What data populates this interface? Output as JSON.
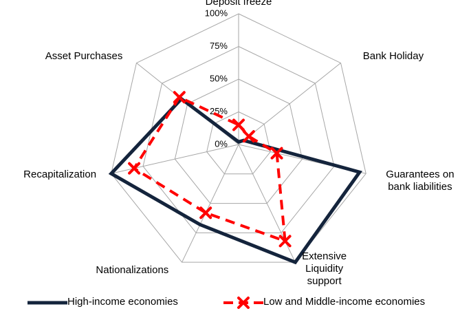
{
  "chart_data": {
    "type": "radar",
    "categories": [
      "Deposit freeze",
      "Bank Holiday",
      "Guarantees on bank liabilities",
      "Extensive Liquidity support",
      "Nationalizations",
      "Recapitalization",
      "Asset Purchases"
    ],
    "series": [
      {
        "name": "High-income economies",
        "color": "#14243c",
        "values": [
          2,
          5,
          95,
          100,
          68,
          100,
          56
        ]
      },
      {
        "name": "Low and Middle-income economies",
        "color": "#ff0000",
        "values": [
          15,
          10,
          30,
          82,
          58,
          82,
          58
        ]
      }
    ],
    "ylim": [
      0,
      100
    ],
    "yticks": [
      {
        "value": 0,
        "label": "0%"
      },
      {
        "value": 25,
        "label": "25%"
      },
      {
        "value": 50,
        "label": "50%"
      },
      {
        "value": 75,
        "label": "75%"
      },
      {
        "value": 100,
        "label": "100%"
      }
    ],
    "grid": true
  }
}
